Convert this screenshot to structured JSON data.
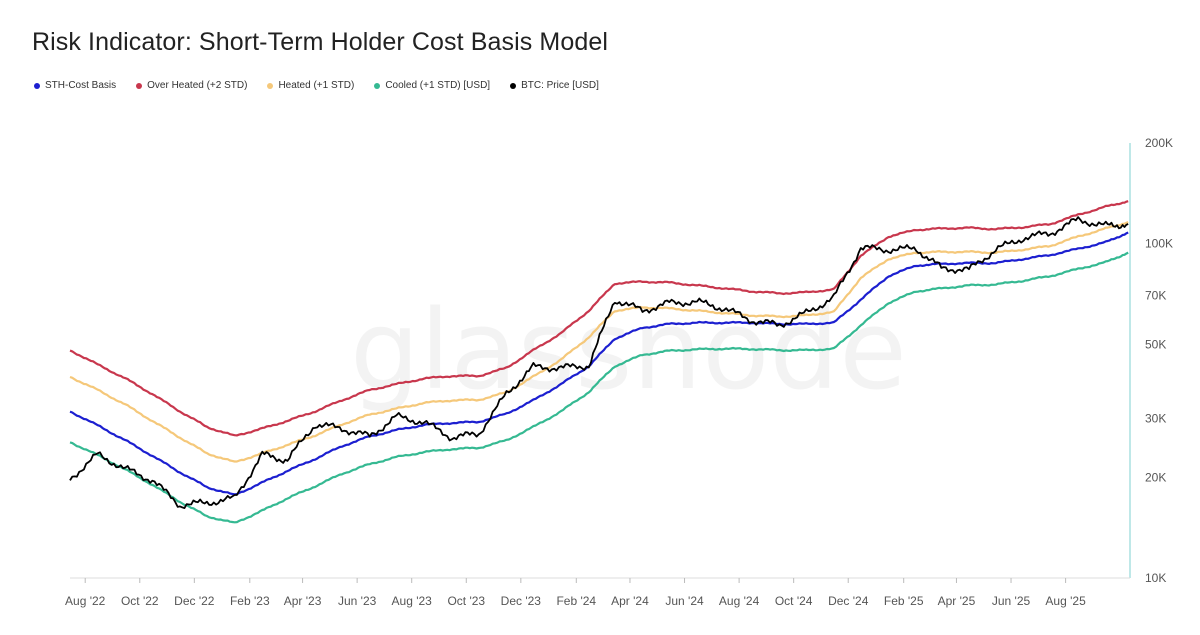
{
  "title": "Risk Indicator: Short-Term Holder Cost Basis Model",
  "watermark": "glassnode",
  "legend": [
    {
      "label": "STH-Cost Basis",
      "color": "#1c1fd0"
    },
    {
      "label": "Over Heated (+2 STD)",
      "color": "#c8374d"
    },
    {
      "label": "Heated (+1 STD)",
      "color": "#f5c87a"
    },
    {
      "label": "Cooled (+1 STD) [USD]",
      "color": "#35b992"
    },
    {
      "label": "BTC: Price [USD]",
      "color": "#000000"
    }
  ],
  "chart_data": {
    "type": "line",
    "y_scale": "log",
    "ylim": [
      10000,
      200000
    ],
    "x_range": [
      "2022-07-15",
      "2025-10-12"
    ],
    "y_ticks": [
      {
        "value": 10000,
        "label": "10K"
      },
      {
        "value": 20000,
        "label": "20K"
      },
      {
        "value": 30000,
        "label": "30K"
      },
      {
        "value": 50000,
        "label": "50K"
      },
      {
        "value": 70000,
        "label": "70K"
      },
      {
        "value": 100000,
        "label": "100K"
      },
      {
        "value": 200000,
        "label": "200K"
      }
    ],
    "x_ticks": [
      {
        "date": "2022-08-01",
        "label": "Aug '22"
      },
      {
        "date": "2022-10-01",
        "label": "Oct '22"
      },
      {
        "date": "2022-12-01",
        "label": "Dec '22"
      },
      {
        "date": "2023-02-01",
        "label": "Feb '23"
      },
      {
        "date": "2023-04-01",
        "label": "Apr '23"
      },
      {
        "date": "2023-06-01",
        "label": "Jun '23"
      },
      {
        "date": "2023-08-01",
        "label": "Aug '23"
      },
      {
        "date": "2023-10-01",
        "label": "Oct '23"
      },
      {
        "date": "2023-12-01",
        "label": "Dec '23"
      },
      {
        "date": "2024-02-01",
        "label": "Feb '24"
      },
      {
        "date": "2024-04-01",
        "label": "Apr '24"
      },
      {
        "date": "2024-06-01",
        "label": "Jun '24"
      },
      {
        "date": "2024-08-01",
        "label": "Aug '24"
      },
      {
        "date": "2024-10-01",
        "label": "Oct '24"
      },
      {
        "date": "2024-12-01",
        "label": "Dec '24"
      },
      {
        "date": "2025-02-01",
        "label": "Feb '25"
      },
      {
        "date": "2025-04-01",
        "label": "Apr '25"
      },
      {
        "date": "2025-06-01",
        "label": "Jun '25"
      },
      {
        "date": "2025-08-01",
        "label": "Aug '25"
      }
    ],
    "x": [
      "2022-07-15",
      "2022-08-15",
      "2022-09-15",
      "2022-10-15",
      "2022-11-15",
      "2022-12-15",
      "2023-01-15",
      "2023-02-15",
      "2023-03-15",
      "2023-04-15",
      "2023-05-15",
      "2023-06-15",
      "2023-07-15",
      "2023-08-15",
      "2023-09-15",
      "2023-10-15",
      "2023-11-15",
      "2023-12-15",
      "2024-01-15",
      "2024-02-15",
      "2024-03-15",
      "2024-04-15",
      "2024-05-15",
      "2024-06-15",
      "2024-07-15",
      "2024-08-15",
      "2024-09-15",
      "2024-10-15",
      "2024-11-15",
      "2024-12-15",
      "2025-01-15",
      "2025-02-15",
      "2025-03-15",
      "2025-04-15",
      "2025-05-15",
      "2025-06-15",
      "2025-07-15",
      "2025-08-15",
      "2025-09-15",
      "2025-10-10"
    ],
    "series": [
      {
        "name": "Over Heated (+2 STD)",
        "color": "#c8374d",
        "values": [
          48000,
          43500,
          39500,
          35500,
          31500,
          28300,
          26600,
          28000,
          29500,
          31500,
          34000,
          36500,
          38000,
          39500,
          40200,
          40200,
          42500,
          48000,
          54000,
          63000,
          76000,
          77000,
          76500,
          75000,
          73500,
          72000,
          71000,
          71500,
          73000,
          92000,
          105000,
          110000,
          111000,
          111500,
          110500,
          112000,
          114500,
          122000,
          129000,
          134000
        ]
      },
      {
        "name": "Heated (+1 STD)",
        "color": "#f5c87a",
        "values": [
          40000,
          36500,
          33000,
          29500,
          26300,
          23600,
          22200,
          23600,
          25000,
          26700,
          28800,
          30800,
          32100,
          33400,
          34000,
          34100,
          35900,
          40000,
          45000,
          52500,
          63000,
          64500,
          64000,
          63000,
          62000,
          61000,
          60500,
          61000,
          62500,
          79000,
          90000,
          94000,
          94500,
          94500,
          94000,
          96000,
          98500,
          105000,
          111000,
          116000
        ]
      },
      {
        "name": "STH-Cost Basis",
        "color": "#1c1fd0",
        "values": [
          31500,
          28600,
          25800,
          23200,
          20700,
          18700,
          17700,
          19300,
          20900,
          22700,
          24800,
          26500,
          27700,
          28700,
          29100,
          29300,
          31000,
          34000,
          38000,
          43000,
          52000,
          56000,
          57500,
          58000,
          58000,
          58000,
          57500,
          57500,
          58000,
          68000,
          80000,
          86000,
          87000,
          87500,
          87500,
          90000,
          92500,
          96500,
          101000,
          108000
        ]
      },
      {
        "name": "Cooled (+1 STD) [USD]",
        "color": "#35b992",
        "values": [
          25500,
          23300,
          21100,
          19000,
          16900,
          15300,
          14600,
          15900,
          17300,
          18800,
          20500,
          21900,
          23000,
          23800,
          24300,
          24500,
          25800,
          28300,
          31500,
          36000,
          43000,
          46500,
          47800,
          48300,
          48500,
          48400,
          48000,
          48000,
          48500,
          57000,
          66500,
          72000,
          73500,
          75000,
          75500,
          77500,
          80000,
          84000,
          88000,
          94000
        ]
      }
    ],
    "price": {
      "name": "BTC: Price [USD]",
      "color": "#000000",
      "values": [
        19800,
        23400,
        21200,
        19600,
        16500,
        16800,
        17300,
        23400,
        22500,
        28800,
        28000,
        26500,
        30400,
        29200,
        26300,
        27000,
        35600,
        42800,
        42500,
        43200,
        68000,
        63000,
        66500,
        67000,
        64000,
        59000,
        57000,
        62000,
        69000,
        97000,
        96000,
        96500,
        84500,
        83500,
        96000,
        104000,
        107500,
        118000,
        113000,
        114500
      ]
    }
  }
}
